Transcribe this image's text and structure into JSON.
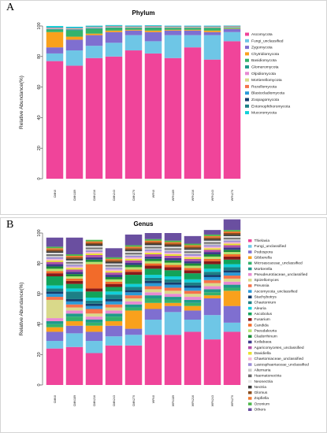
{
  "panels": [
    {
      "letter": "A"
    },
    {
      "letter": "B"
    }
  ],
  "chart_data": [
    {
      "type": "bar",
      "stacked": true,
      "title": "Phylum",
      "ylabel": "Relative Abundance(%)",
      "ylim": [
        0,
        100
      ],
      "yticks": [
        0,
        20,
        40,
        60,
        80,
        100
      ],
      "categories": [
        "CMN0",
        "CMN189",
        "CMN216",
        "CMN243",
        "CMN270",
        "WFN0",
        "WFN189",
        "WFN216",
        "WFN243",
        "WFN270"
      ],
      "legend_position": "right",
      "series": [
        {
          "name": "Ascomycota",
          "color": "#f0449a",
          "values": [
            77,
            74,
            79,
            80,
            84,
            82,
            79,
            86,
            78,
            90
          ]
        },
        {
          "name": "Fungi_unclassified",
          "color": "#6ec6e6",
          "values": [
            5,
            10,
            8,
            9,
            10,
            8,
            15,
            8,
            16,
            6
          ]
        },
        {
          "name": "Zygomycota",
          "color": "#7f6fd0",
          "values": [
            4,
            7,
            7,
            7,
            3,
            6,
            3,
            3,
            2,
            2
          ]
        },
        {
          "name": "Chytridiomycota",
          "color": "#f9a11c",
          "values": [
            10,
            2,
            1,
            1,
            0.5,
            1,
            0.5,
            0.5,
            1,
            0.3
          ]
        },
        {
          "name": "Basidiomycota",
          "color": "#34b36c",
          "values": [
            1.5,
            4,
            3,
            1.5,
            1,
            1.5,
            1,
            1,
            1.5,
            0.5
          ]
        },
        {
          "name": "Glomeromycota",
          "color": "#1f9a8a",
          "values": [
            0.5,
            0.8,
            0.6,
            0.5,
            0.4,
            0.5,
            0.4,
            0.4,
            0.4,
            0.3
          ]
        },
        {
          "name": "Olpidiomycota",
          "color": "#e78ad2",
          "values": [
            0.3,
            0.3,
            0.3,
            0.3,
            0.2,
            0.3,
            0.2,
            0.2,
            0.2,
            0.2
          ]
        },
        {
          "name": "Mortierellomycota",
          "color": "#d9d98a",
          "values": [
            0.2,
            0.2,
            0.2,
            0.2,
            0.2,
            0.2,
            0.2,
            0.2,
            0.2,
            0.2
          ]
        },
        {
          "name": "Rozellomycota",
          "color": "#f5734a",
          "values": [
            0.2,
            0.2,
            0.2,
            0.2,
            0.2,
            0.2,
            0.2,
            0.2,
            0.2,
            0.2
          ]
        },
        {
          "name": "Blastocladiomycota",
          "color": "#2b9ad8",
          "values": [
            0.2,
            0.2,
            0.2,
            0.2,
            0.2,
            0.2,
            0.2,
            0.2,
            0.2,
            0.2
          ]
        },
        {
          "name": "Zoopagomycota",
          "color": "#143e6e",
          "values": [
            0.1,
            0.1,
            0.1,
            0.1,
            0.1,
            0.1,
            0.1,
            0.1,
            0.1,
            0.1
          ]
        },
        {
          "name": "Entomophthoromycota",
          "color": "#1c7f85",
          "values": [
            0.1,
            0.1,
            0.1,
            0.1,
            0.1,
            0.1,
            0.1,
            0.1,
            0.1,
            0.1
          ]
        },
        {
          "name": "Mucoromycota",
          "color": "#11cfd8",
          "values": [
            0.9,
            0.6,
            0.5,
            0.5,
            0.4,
            0.4,
            0.3,
            0.3,
            0.3,
            0.2
          ]
        }
      ]
    },
    {
      "type": "bar",
      "stacked": true,
      "title": "Genus",
      "ylabel": "Relative Abundance(%)",
      "ylim": [
        0,
        100
      ],
      "yticks": [
        0,
        20,
        40,
        60,
        80,
        100
      ],
      "categories": [
        "CMN0",
        "CMN189",
        "CMN216",
        "CMN243",
        "CMN270",
        "WFN0",
        "WFN189",
        "WFN216",
        "WFN243",
        "WFN270"
      ],
      "legend_position": "right",
      "series": [
        {
          "name": "Thielavia",
          "color": "#f0449a",
          "values": [
            24,
            25,
            21,
            26,
            26,
            33,
            33,
            35,
            30,
            35
          ]
        },
        {
          "name": "Fungi_unclassified",
          "color": "#6ec6e6",
          "values": [
            5,
            9,
            8,
            6,
            7,
            10,
            15,
            8,
            16,
            6
          ]
        },
        {
          "name": "Podospora",
          "color": "#7f6fd0",
          "values": [
            6,
            5,
            6,
            7,
            4,
            7,
            4,
            6,
            11,
            11
          ]
        },
        {
          "name": "Gibberella",
          "color": "#f9a11c",
          "values": [
            3,
            3,
            4,
            3,
            12,
            4,
            2,
            3,
            2,
            10
          ]
        },
        {
          "name": "Microascaceae_unclassified",
          "color": "#34b36c",
          "values": [
            2,
            3,
            2,
            3,
            2,
            3,
            2,
            2,
            2,
            2
          ]
        },
        {
          "name": "Mortierella",
          "color": "#1f9a8a",
          "values": [
            2,
            2,
            2,
            2,
            2,
            2,
            2,
            2,
            2,
            2
          ]
        },
        {
          "name": "Pseudeurotiaceae_unclassified",
          "color": "#e78ad2",
          "values": [
            2,
            2,
            2,
            2,
            2,
            2,
            2,
            2,
            2,
            2
          ]
        },
        {
          "name": "Spizellomyces",
          "color": "#d9d98a",
          "values": [
            12,
            2,
            2,
            2,
            2,
            2,
            2,
            2,
            2,
            2
          ]
        },
        {
          "name": "Preussia",
          "color": "#f5734a",
          "values": [
            2,
            2,
            3,
            2,
            2,
            2,
            2,
            2,
            2,
            2
          ]
        },
        {
          "name": "Ascomycota_unclassified",
          "color": "#2b9ad8",
          "values": [
            2,
            2,
            2,
            2,
            2,
            2,
            2,
            2,
            2,
            2
          ]
        },
        {
          "name": "Stachybotrys",
          "color": "#143e6e",
          "values": [
            1.5,
            1.5,
            1.5,
            1.5,
            1.5,
            1.5,
            1.5,
            1.5,
            1.5,
            1.5
          ]
        },
        {
          "name": "Chaetomium",
          "color": "#1c7f85",
          "values": [
            2,
            5,
            2,
            3,
            2,
            2,
            2,
            2,
            2,
            2
          ]
        },
        {
          "name": "Aleuria",
          "color": "#11cfd8",
          "values": [
            2,
            2,
            2,
            2,
            2,
            2,
            2,
            2,
            2,
            2
          ]
        },
        {
          "name": "Ascobolus",
          "color": "#12a35a",
          "values": [
            6,
            3,
            4,
            3,
            6,
            4,
            4,
            4,
            3,
            3
          ]
        },
        {
          "name": "Fusarium",
          "color": "#8a1a1a",
          "values": [
            2,
            2,
            2,
            2,
            2,
            2,
            2,
            2,
            2,
            2
          ]
        },
        {
          "name": "Candida",
          "color": "#f26b2a",
          "values": [
            1.5,
            1.5,
            16,
            1.5,
            1.5,
            1.5,
            1.5,
            1.5,
            1.5,
            1.5
          ]
        },
        {
          "name": "Pseudaleuria",
          "color": "#b6e36e",
          "values": [
            1.5,
            1.5,
            1.5,
            1.5,
            1.5,
            1.5,
            1.5,
            1.5,
            1.5,
            1.5
          ]
        },
        {
          "name": "Cladorrhinum",
          "color": "#1b8a3a",
          "values": [
            1.5,
            1.5,
            1.5,
            1.5,
            1.5,
            1.5,
            1.5,
            1.5,
            1.5,
            1.5
          ]
        },
        {
          "name": "Kotlabaea",
          "color": "#3e3a8c",
          "values": [
            1.5,
            1.5,
            1.5,
            1.5,
            1.5,
            1.5,
            1.5,
            1.5,
            1.5,
            1.5
          ]
        },
        {
          "name": "Agaricomycetes_unclassified",
          "color": "#b04fa8",
          "values": [
            1.5,
            1.5,
            1.5,
            1.5,
            1.5,
            1.5,
            1.5,
            1.5,
            1.5,
            1.5
          ]
        },
        {
          "name": "Davidiella",
          "color": "#e9e22e",
          "values": [
            1,
            1,
            1,
            1,
            1,
            1,
            1,
            1,
            1,
            1
          ]
        },
        {
          "name": "Chaetomiaceae_unclassified",
          "color": "#f7b6d2",
          "values": [
            1,
            1,
            1,
            1,
            1,
            1,
            1,
            1,
            1,
            1
          ]
        },
        {
          "name": "Lasiosphaeriaceae_unclassified",
          "color": "#9b8cd6",
          "values": [
            1,
            1,
            1,
            1,
            1,
            1,
            1,
            1,
            1,
            1
          ]
        },
        {
          "name": "Alternaria",
          "color": "#c9c9c9",
          "values": [
            1,
            1,
            1,
            1,
            1,
            1,
            1,
            1,
            1,
            1
          ]
        },
        {
          "name": "Haematonectria",
          "color": "#6c6c6c",
          "values": [
            1,
            1,
            1,
            1,
            1,
            1,
            1,
            1,
            1,
            1
          ]
        },
        {
          "name": "Neonectria",
          "color": "#e7e7e7",
          "values": [
            1,
            1,
            1,
            1,
            1,
            1,
            1,
            1,
            1,
            1
          ]
        },
        {
          "name": "Nectria",
          "color": "#3a3a3a",
          "values": [
            1,
            1,
            1,
            1,
            1,
            1,
            1,
            1,
            1,
            1
          ]
        },
        {
          "name": "Glomus",
          "color": "#8a4a1a",
          "values": [
            1,
            1,
            1,
            1,
            1,
            1,
            1,
            1,
            1,
            1
          ]
        },
        {
          "name": "Zopfiella",
          "color": "#f0782e",
          "values": [
            1,
            1,
            1,
            1,
            1,
            1,
            1,
            1,
            1,
            1
          ]
        },
        {
          "name": "Ozonium",
          "color": "#4cb84a",
          "values": [
            1,
            1,
            1,
            1,
            1,
            1,
            1,
            1,
            1,
            1
          ]
        },
        {
          "name": "Others",
          "color": "#6a4fa0",
          "values": [
            6,
            11,
            0,
            6,
            7,
            4,
            5,
            5,
            3,
            7
          ]
        }
      ]
    }
  ]
}
